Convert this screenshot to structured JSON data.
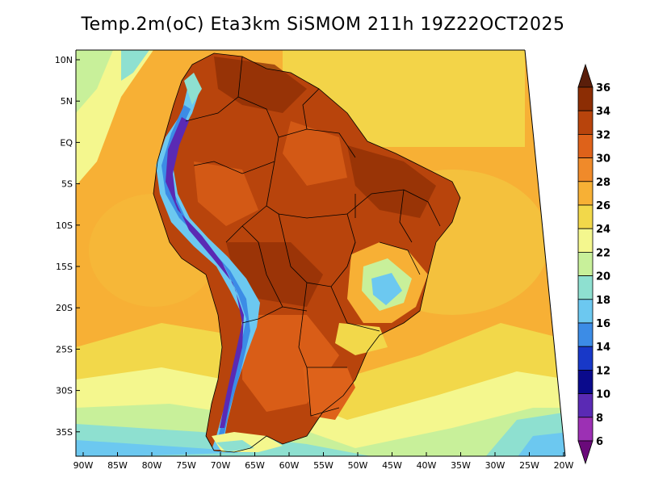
{
  "title": "Temp.2m(oC) Eta3km SiSMOM 211h 19Z22OCT2025",
  "map": {
    "lat_labels": [
      "10N",
      "5N",
      "EQ",
      "5S",
      "10S",
      "15S",
      "20S",
      "25S",
      "30S",
      "35S"
    ],
    "lon_labels": [
      "90W",
      "85W",
      "80W",
      "75W",
      "70W",
      "65W",
      "60W",
      "55W",
      "50W",
      "45W",
      "40W",
      "35W",
      "30W",
      "25W",
      "20W"
    ]
  },
  "colorbar": {
    "labels": [
      "36",
      "34",
      "32",
      "30",
      "28",
      "26",
      "24",
      "22",
      "20",
      "18",
      "16",
      "14",
      "12",
      "10",
      "8",
      "6"
    ],
    "colors": [
      "#5a1e0a",
      "#8c2d04",
      "#b8440c",
      "#de621a",
      "#f08a2a",
      "#f7b035",
      "#f2d84a",
      "#f4f78e",
      "#c8f09a",
      "#8ee0d0",
      "#6cc8f0",
      "#3c8ce6",
      "#1838c8",
      "#0a0a8c",
      "#5a2ab4",
      "#9c30b4",
      "#6a0a7a"
    ]
  }
}
